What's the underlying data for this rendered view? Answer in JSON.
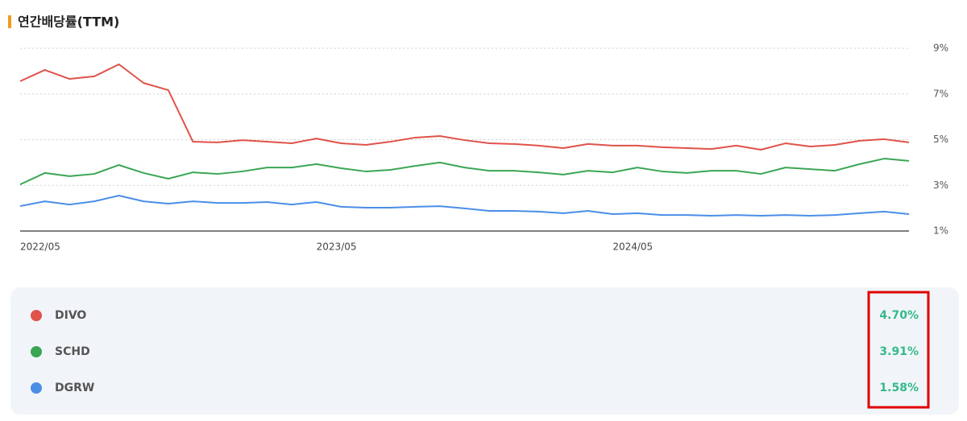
{
  "chart_data": {
    "type": "line",
    "title": "연간배당률(TTM)",
    "categories": [
      "2022/05",
      null,
      null,
      null,
      null,
      null,
      null,
      null,
      null,
      null,
      null,
      null,
      "2023/05",
      null,
      null,
      null,
      null,
      null,
      null,
      null,
      null,
      null,
      null,
      null,
      "2024/05",
      null,
      null,
      null,
      null,
      null,
      null,
      null,
      null,
      null,
      null,
      null,
      null
    ],
    "ylim": [
      1,
      9
    ],
    "yticks": [
      {
        "value": 1,
        "label": "1%"
      },
      {
        "value": 3,
        "label": "3%"
      },
      {
        "value": 5,
        "label": "5%"
      },
      {
        "value": 7,
        "label": "7%"
      },
      {
        "value": 9,
        "label": "9%"
      }
    ],
    "grid": true,
    "series": [
      {
        "name": "DIVO",
        "color": "#e0524a",
        "current_value": 4.7,
        "current_value_label": "4.70%",
        "values": [
          7.56,
          8.05,
          7.66,
          7.77,
          8.3,
          7.48,
          7.17,
          4.91,
          4.88,
          4.98,
          4.91,
          4.84,
          5.05,
          4.84,
          4.77,
          4.91,
          5.09,
          5.16,
          4.98,
          4.84,
          4.81,
          4.74,
          4.63,
          4.81,
          4.74,
          4.74,
          4.67,
          4.63,
          4.59,
          4.74,
          4.56,
          4.84,
          4.7,
          4.77,
          4.95,
          5.02,
          4.88
        ]
      },
      {
        "name": "SCHD",
        "color": "#3aa655",
        "current_value": 3.91,
        "current_value_label": "3.91%",
        "values": [
          3.04,
          3.54,
          3.4,
          3.5,
          3.89,
          3.54,
          3.29,
          3.57,
          3.5,
          3.61,
          3.78,
          3.78,
          3.93,
          3.75,
          3.61,
          3.68,
          3.85,
          4.0,
          3.78,
          3.64,
          3.64,
          3.57,
          3.47,
          3.64,
          3.57,
          3.78,
          3.61,
          3.54,
          3.64,
          3.64,
          3.5,
          3.78,
          3.71,
          3.64,
          3.93,
          4.17,
          4.07
        ]
      },
      {
        "name": "DGRW",
        "color": "#4a8ee8",
        "current_value": 1.58,
        "current_value_label": "1.58%",
        "values": [
          2.09,
          2.3,
          2.16,
          2.3,
          2.55,
          2.3,
          2.2,
          2.3,
          2.23,
          2.23,
          2.27,
          2.16,
          2.27,
          2.06,
          2.02,
          2.02,
          2.06,
          2.09,
          1.99,
          1.88,
          1.88,
          1.85,
          1.78,
          1.88,
          1.74,
          1.78,
          1.7,
          1.7,
          1.67,
          1.7,
          1.67,
          1.7,
          1.67,
          1.7,
          1.78,
          1.85,
          1.74
        ]
      }
    ]
  }
}
